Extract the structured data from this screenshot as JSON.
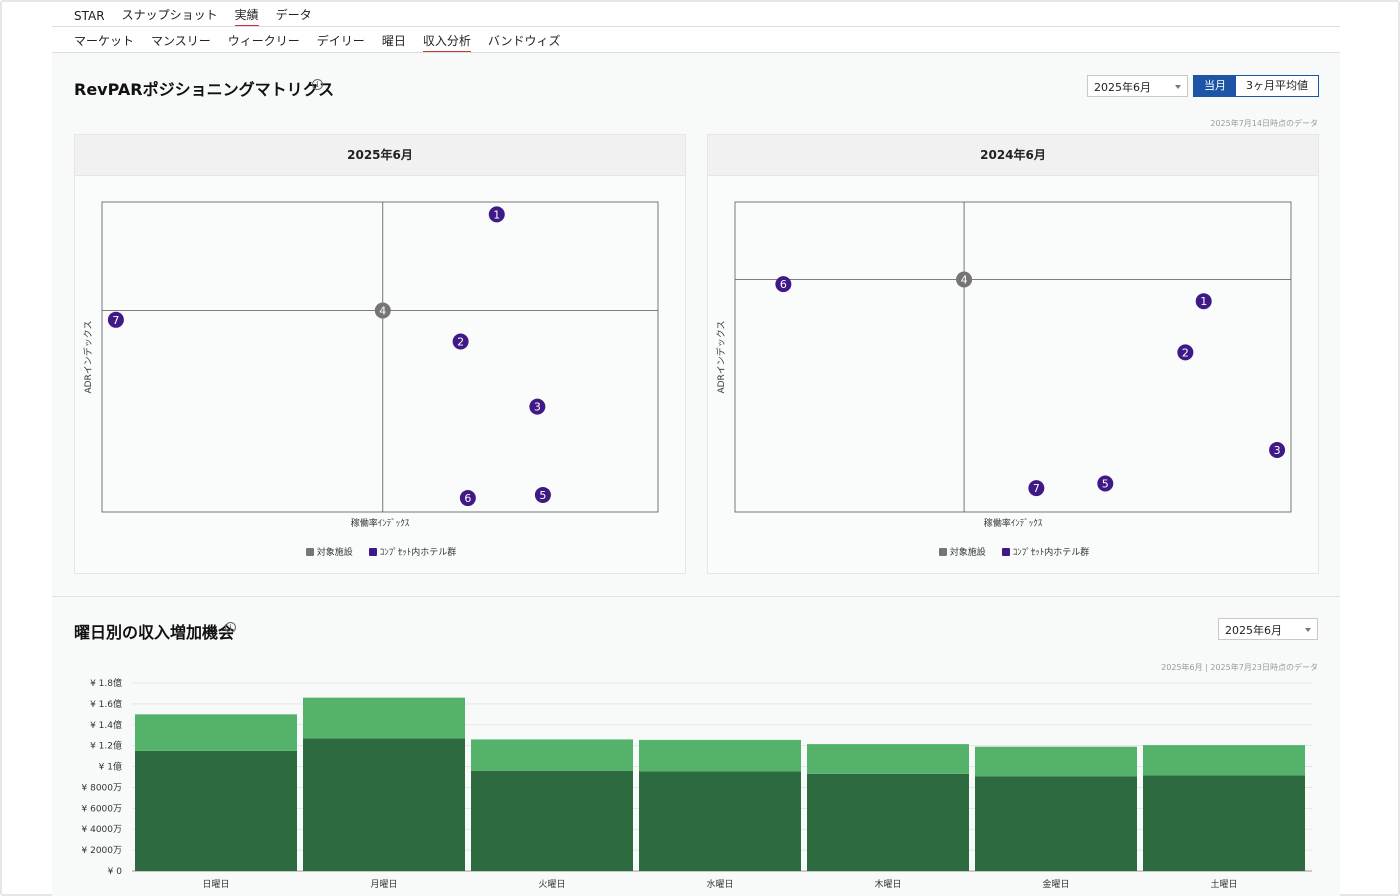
{
  "nav_primary": [
    "STAR",
    "スナップショット",
    "実績",
    "データ"
  ],
  "nav_primary_active": 2,
  "nav_secondary": [
    "マーケット",
    "マンスリー",
    "ウィークリー",
    "デイリー",
    "曜日",
    "収入分析",
    "バンドウィズ"
  ],
  "nav_secondary_active": 5,
  "positioning": {
    "title": "RevPARポジショニングマトリクス",
    "month_select": "2025年6月",
    "toggle_current": "当月",
    "toggle_avg": "3ヶ月平均値",
    "note": "2025年7月14日時点のデータ",
    "x_label": "稼働率ｲﾝﾃﾞｯｸｽ",
    "y_label": "ADRインデックス",
    "legend_target": "対象施設",
    "legend_comp": "ｺﾝﾌﾟｾｯﾄ内ホテル群",
    "colors": {
      "target": "#757575",
      "comp": "#3f1a87"
    },
    "panels": [
      {
        "title": "2025年6月",
        "points": [
          {
            "label": "1",
            "x": 0.71,
            "y": 0.96,
            "type": "comp"
          },
          {
            "label": "2",
            "x": 0.645,
            "y": 0.55,
            "type": "comp"
          },
          {
            "label": "3",
            "x": 0.783,
            "y": 0.34,
            "type": "comp"
          },
          {
            "label": "4",
            "x": 0.505,
            "y": 0.65,
            "type": "target"
          },
          {
            "label": "5",
            "x": 0.793,
            "y": 0.055,
            "type": "comp"
          },
          {
            "label": "6",
            "x": 0.658,
            "y": 0.045,
            "type": "comp"
          },
          {
            "label": "7",
            "x": 0.025,
            "y": 0.62,
            "type": "comp"
          }
        ]
      },
      {
        "title": "2024年6月",
        "points": [
          {
            "label": "1",
            "x": 0.843,
            "y": 0.68,
            "type": "comp"
          },
          {
            "label": "2",
            "x": 0.81,
            "y": 0.515,
            "type": "comp"
          },
          {
            "label": "3",
            "x": 0.975,
            "y": 0.2,
            "type": "comp"
          },
          {
            "label": "4",
            "x": 0.412,
            "y": 0.75,
            "type": "target"
          },
          {
            "label": "5",
            "x": 0.666,
            "y": 0.092,
            "type": "comp"
          },
          {
            "label": "6",
            "x": 0.087,
            "y": 0.735,
            "type": "comp"
          },
          {
            "label": "7",
            "x": 0.542,
            "y": 0.077,
            "type": "comp"
          }
        ]
      }
    ]
  },
  "revenue": {
    "title": "曜日別の収入増加機会",
    "month_select": "2025年6月",
    "note": "2025年6月 | 2025年7月23日時点のデータ"
  },
  "chart_data": {
    "type": "bar",
    "stacked": true,
    "categories": [
      "日曜日",
      "月曜日",
      "火曜日",
      "水曜日",
      "木曜日",
      "金曜日",
      "土曜日"
    ],
    "series": [
      {
        "color": "#2e6a40",
        "values": [
          115000000,
          127000000,
          96000000,
          95500000,
          93000000,
          90500000,
          91500000
        ]
      },
      {
        "color": "#55b26b",
        "values": [
          35000000,
          39000000,
          30000000,
          30000000,
          28500000,
          28500000,
          29000000
        ]
      }
    ],
    "ylim": [
      0,
      180000000
    ],
    "yticks": [
      {
        "value": 0,
        "label": "¥ 0"
      },
      {
        "value": 20000000,
        "label": "¥ 2000万"
      },
      {
        "value": 40000000,
        "label": "¥ 4000万"
      },
      {
        "value": 60000000,
        "label": "¥ 6000万"
      },
      {
        "value": 80000000,
        "label": "¥ 8000万"
      },
      {
        "value": 100000000,
        "label": "¥ 1億"
      },
      {
        "value": 120000000,
        "label": "¥ 1.2億"
      },
      {
        "value": 140000000,
        "label": "¥ 1.4億"
      },
      {
        "value": 160000000,
        "label": "¥ 1.6億"
      },
      {
        "value": 180000000,
        "label": "¥ 1.8億"
      }
    ],
    "grid": true
  }
}
